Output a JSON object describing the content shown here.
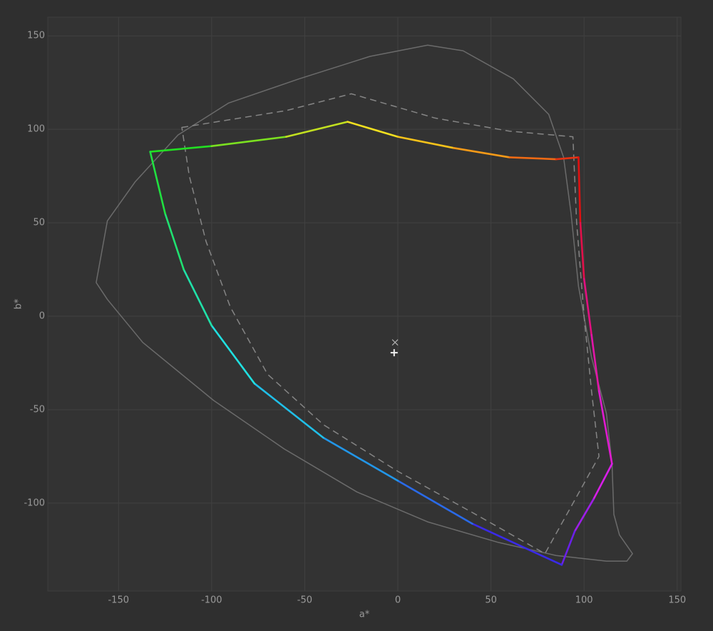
{
  "chart_data": {
    "type": "line",
    "x_label": "a*",
    "y_label": "b*",
    "xlim": [
      -188,
      152
    ],
    "ylim": [
      -147,
      160
    ],
    "xticks": [
      -150,
      -100,
      -50,
      0,
      50,
      100,
      150
    ],
    "yticks": [
      -100,
      -50,
      0,
      50,
      100,
      150
    ],
    "grid": true,
    "series": [
      {
        "color": "#6b6b6b",
        "style": "solid",
        "closed": true,
        "x": [
          -162,
          -156,
          -141,
          -118,
          -91,
          -53,
          -15,
          16,
          35,
          62,
          81,
          89,
          93,
          97,
          104,
          112,
          115,
          116,
          119,
          126,
          123,
          112,
          85,
          54,
          16,
          -22,
          -61,
          -99,
          -137,
          -156
        ],
        "y": [
          18,
          51,
          72,
          97,
          114,
          127,
          139,
          145,
          142,
          127,
          108,
          85,
          55,
          16,
          -22,
          -52,
          -79,
          -106,
          -117,
          -127,
          -131,
          -131,
          -128,
          -121,
          -110,
          -94,
          -71,
          -45,
          -14,
          9
        ]
      },
      {
        "color": "#858585",
        "style": "dashed",
        "closed": true,
        "x": [
          -116,
          -60,
          -25,
          20,
          60,
          94,
          96,
          100,
          104,
          108,
          79,
          40,
          0,
          -40,
          -70,
          -90,
          -103,
          -112
        ],
        "y": [
          101,
          110,
          119,
          106,
          99,
          96,
          50,
          0,
          -40,
          -75,
          -127,
          -105,
          -83,
          -58,
          -31,
          5,
          40,
          75
        ]
      },
      {
        "width": 2.6,
        "closed": true,
        "x": [
          -133,
          -100,
          -60,
          -27,
          0,
          30,
          60,
          85,
          97,
          98,
          100,
          104,
          108,
          115,
          105,
          95,
          88,
          40,
          0,
          -40,
          -77,
          -100,
          -115,
          -125
        ],
        "y": [
          88,
          91,
          96,
          104,
          96,
          90,
          85,
          84,
          85,
          50,
          20,
          -10,
          -40,
          -79,
          -98,
          -115,
          -133,
          -111,
          -88,
          -65,
          -36,
          -5,
          25,
          55
        ],
        "colors": [
          "#22e022",
          "#7be020",
          "#c2e020",
          "#f2e020",
          "#f5c21a",
          "#f59a18",
          "#ef6a14",
          "#e73312",
          "#e01010",
          "#e2104a",
          "#e21080",
          "#e215a8",
          "#e01ad0",
          "#d81ee8",
          "#9e1ee8",
          "#6a20e8",
          "#3a2ae8",
          "#2a6ae8",
          "#2296e8",
          "#20bfe8",
          "#20e0e0",
          "#20e0a8",
          "#20e070",
          "#20e040"
        ]
      }
    ],
    "points": [
      {
        "x": -1.5,
        "y": -14,
        "marker": "x",
        "color": "#b0b0b0"
      },
      {
        "x": -2,
        "y": -19.5,
        "marker": "+",
        "color": "#f0f0f0"
      }
    ]
  }
}
